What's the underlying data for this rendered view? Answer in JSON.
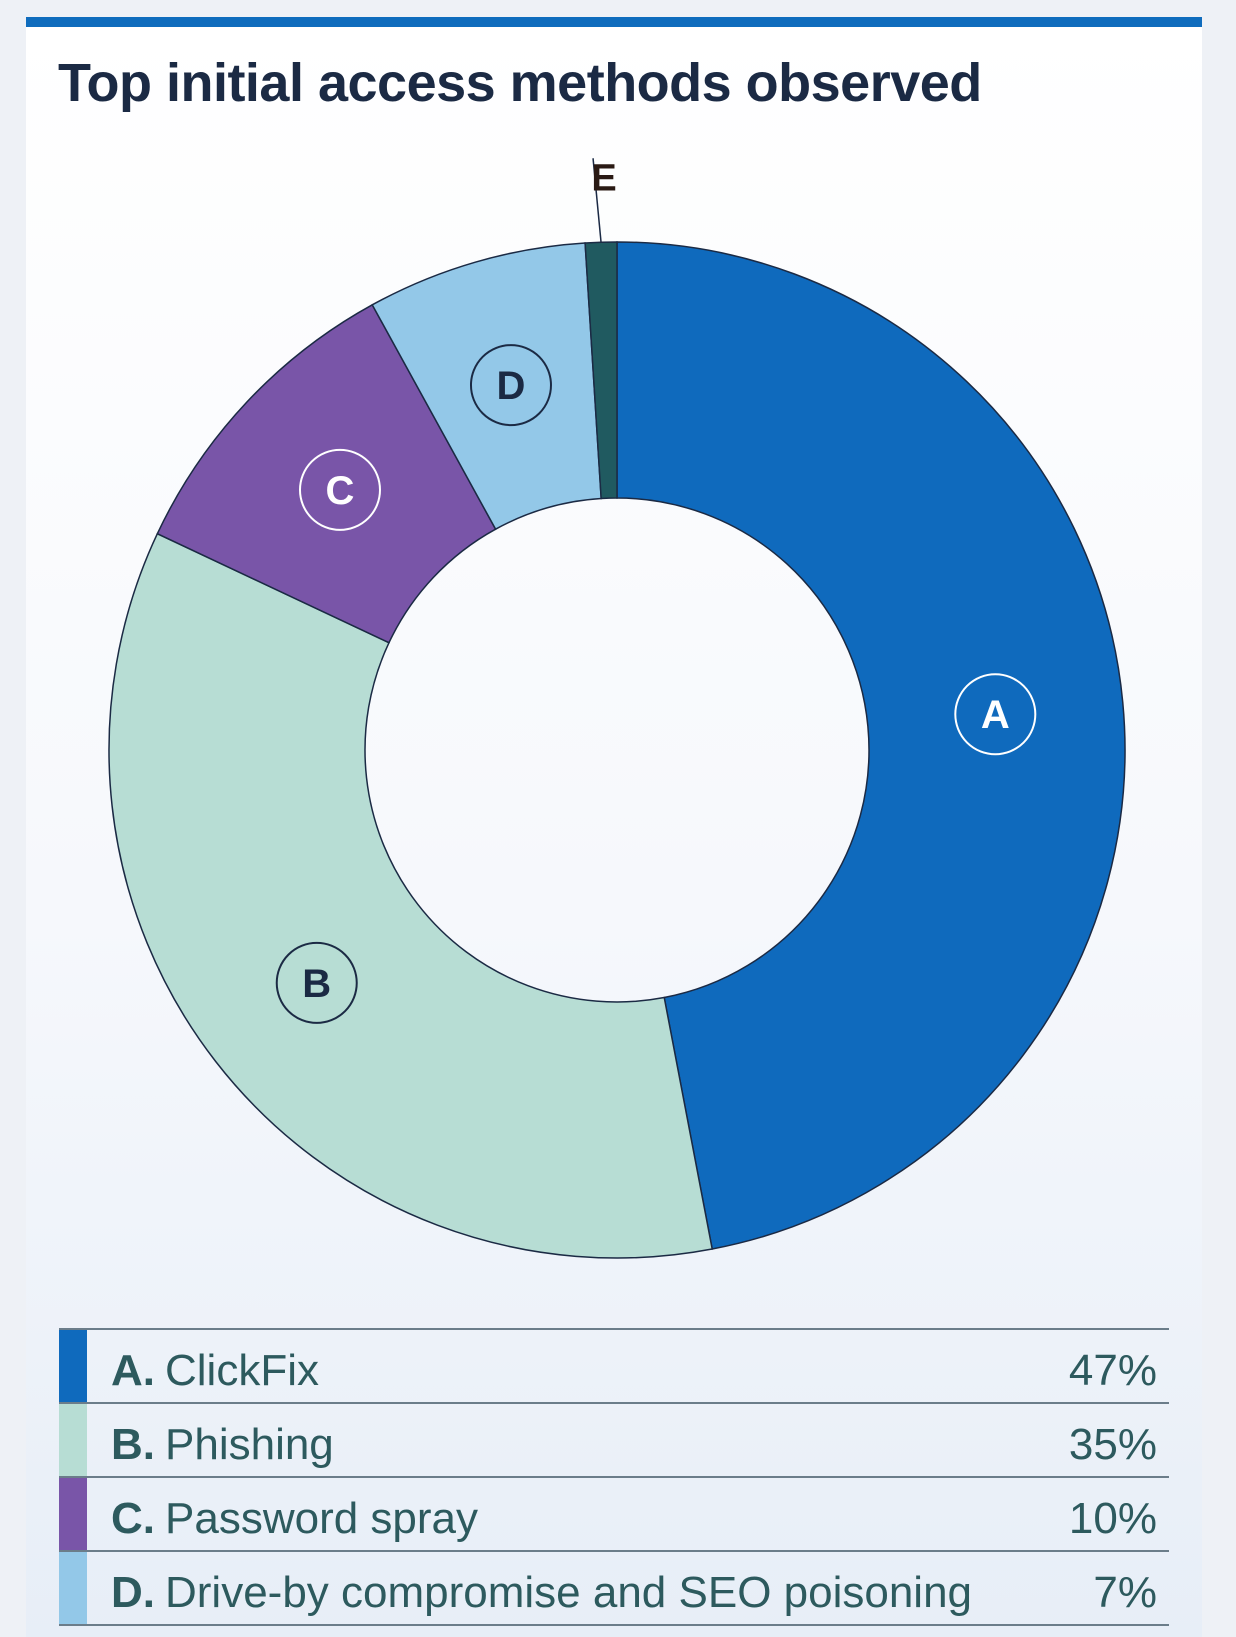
{
  "chart_data": {
    "type": "pie",
    "title": "Top initial access methods observed",
    "series": [
      {
        "letter": "A",
        "label": "ClickFix",
        "value": 47,
        "value_text": "47%",
        "color": "#0f6abd",
        "marker_color": "#ffffff",
        "marker_ring": "#ffffff"
      },
      {
        "letter": "B",
        "label": "Phishing",
        "value": 35,
        "value_text": "35%",
        "color": "#b7ddd4",
        "marker_color": "#1b2a44",
        "marker_ring": "#1b2a44"
      },
      {
        "letter": "C",
        "label": "Password spray",
        "value": 10,
        "value_text": "10%",
        "color": "#7955a8",
        "marker_color": "#ffffff",
        "marker_ring": "#ffffff"
      },
      {
        "letter": "D",
        "label": "Drive-by compromise and SEO poisoning",
        "value": 7,
        "value_text": "7%",
        "color": "#93c8e8",
        "marker_color": "#1b2a44",
        "marker_ring": "#1b2a44"
      },
      {
        "letter": "E",
        "value": 1,
        "color": "#205a60"
      }
    ],
    "legend_position": "bottom",
    "hole": "donut"
  }
}
